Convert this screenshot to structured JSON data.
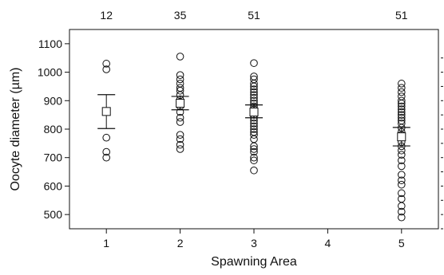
{
  "chart_data": {
    "type": "scatter",
    "title": "",
    "xlabel": "Spawning Area",
    "ylabel": "Oocyte diameter (µm)",
    "categories": [
      "1",
      "2",
      "3",
      "4",
      "5"
    ],
    "x_range": [
      0.5,
      5.5
    ],
    "ylim": [
      450,
      1150
    ],
    "y_ticks": [
      "500",
      "600",
      "700",
      "800",
      "900",
      "1000",
      "1100"
    ],
    "top_counts": [
      {
        "category": "1",
        "label": "12"
      },
      {
        "category": "2",
        "label": "35"
      },
      {
        "category": "3",
        "label": "51"
      },
      {
        "category": "5",
        "label": "51"
      }
    ],
    "grid": false,
    "point_marker": "open-circle",
    "mean_marker": "open-square",
    "groups": [
      {
        "category": "1",
        "points": [
          1030,
          1010,
          770,
          720,
          700
        ],
        "mean": 862,
        "ci": [
          802,
          921
        ]
      },
      {
        "category": "2",
        "points": [
          1055,
          990,
          975,
          960,
          945,
          935,
          920,
          905,
          895,
          880,
          860,
          840,
          825,
          780,
          765,
          745,
          730
        ],
        "mean": 891,
        "ci": [
          868,
          915
        ]
      },
      {
        "category": "3",
        "points": [
          1032,
          985,
          975,
          960,
          950,
          940,
          930,
          920,
          910,
          900,
          890,
          880,
          870,
          860,
          850,
          840,
          830,
          820,
          810,
          800,
          790,
          780,
          765,
          740,
          730,
          720,
          700,
          690,
          655
        ],
        "mean": 860,
        "ci": [
          840,
          885
        ]
      },
      {
        "category": "5",
        "points": [
          960,
          945,
          930,
          915,
          900,
          890,
          880,
          870,
          860,
          850,
          840,
          830,
          820,
          805,
          790,
          780,
          770,
          755,
          740,
          725,
          710,
          690,
          670,
          640,
          620,
          605,
          575,
          555,
          530,
          510,
          490
        ],
        "mean": 773,
        "ci": [
          741,
          806
        ]
      }
    ]
  }
}
